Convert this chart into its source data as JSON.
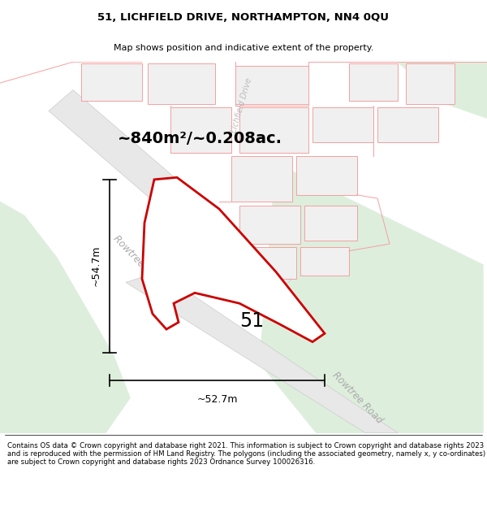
{
  "title": "51, LICHFIELD DRIVE, NORTHAMPTON, NN4 0QU",
  "subtitle": "Map shows position and indicative extent of the property.",
  "area_label": "~840m²/~0.208ac.",
  "width_label": "~52.7m",
  "height_label": "~54.7m",
  "number_label": "51",
  "footer": "Contains OS data © Crown copyright and database right 2021. This information is subject to Crown copyright and database rights 2023 and is reproduced with the permission of HM Land Registry. The polygons (including the associated geometry, namely x, y co-ordinates) are subject to Crown copyright and database rights 2023 Ordnance Survey 100026316.",
  "bg_color": "#ffffff",
  "green_color": "#ddeedd",
  "road_fill": "#e8e8e8",
  "road_edge": "#cccccc",
  "building_fill": "#f0f0f0",
  "building_edge": "#f4a0a0",
  "lot_edge_light": "#f4a0a0",
  "property_edge": "#cc0000",
  "property_fill": "#ffffff",
  "text_road_color": "#aaaaaa",
  "text_dim_color": "#000000"
}
